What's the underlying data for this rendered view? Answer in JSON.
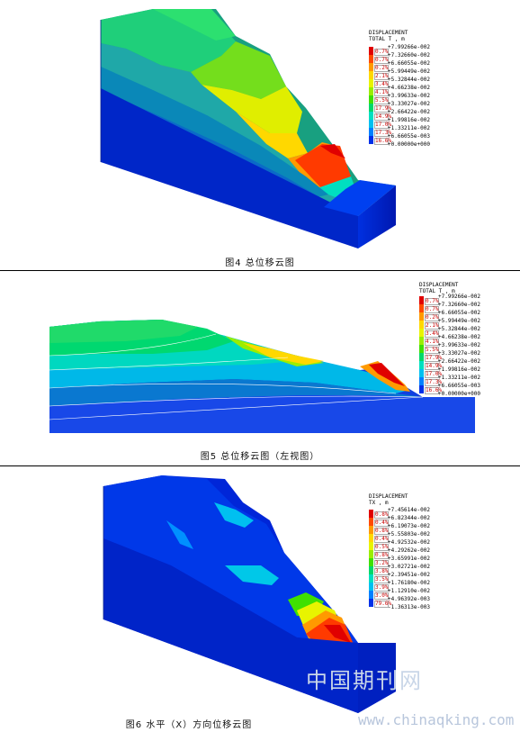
{
  "figures": [
    {
      "caption": "图4   总位移云图",
      "legend": {
        "title": "DISPLACEMENT",
        "subtitle": "TOTAL T , m",
        "values": [
          "+7.99266e-002",
          "+7.32660e-002",
          "+6.66055e-002",
          "+5.99449e-002",
          "+5.32844e-002",
          "+4.66238e-002",
          "+3.99633e-002",
          "+3.33027e-002",
          "+2.66422e-002",
          "+1.99816e-002",
          "+1.33211e-002",
          "+6.66055e-003",
          "+0.00000e+000"
        ],
        "percents": [
          "0.7%",
          "0.7%",
          "0.2%",
          "2.1%",
          "3.4%",
          "4.1%",
          "5.5%",
          "17.9%",
          "14.9%",
          "17.0%",
          "17.3%",
          "16.6%"
        ]
      }
    },
    {
      "caption": "图5   总位移云图（左视图）",
      "legend": {
        "title": "DISPLACEMENT",
        "subtitle": "TOTAL T , m",
        "values": [
          "+7.99266e-002",
          "+7.32660e-002",
          "+6.66055e-002",
          "+5.99449e-002",
          "+5.32844e-002",
          "+4.66238e-002",
          "+3.99633e-002",
          "+3.33027e-002",
          "+2.66422e-002",
          "+1.99816e-002",
          "+1.33211e-002",
          "+6.66055e-003",
          "+0.00000e+000"
        ],
        "percents": [
          "0.7%",
          "0.7%",
          "0.2%",
          "2.1%",
          "3.4%",
          "4.1%",
          "5.5%",
          "17.9%",
          "14.9%",
          "17.0%",
          "17.3%",
          "16.6%"
        ]
      }
    },
    {
      "caption": "图6   水平（X）方向位移云图",
      "legend": {
        "title": "DISPLACEMENT",
        "subtitle": "TX , m",
        "values": [
          "+7.45614e-002",
          "+6.82344e-002",
          "+6.19073e-002",
          "+5.55803e-002",
          "+4.92532e-002",
          "+4.29262e-002",
          "+3.65991e-002",
          "+3.02721e-002",
          "+2.39451e-002",
          "+1.76180e-002",
          "+1.12910e-002",
          "+4.96392e-003",
          "-1.36313e-003"
        ],
        "percents": [
          "0.8%",
          "0.4%",
          "0.8%",
          "0.4%",
          "0.5%",
          "0.8%",
          "3.2%",
          "3.8%",
          "3.5%",
          "3.9%",
          "3.0%",
          "79.6%"
        ]
      }
    }
  ],
  "colors": [
    "#e00000",
    "#ff4a00",
    "#ff9a00",
    "#ffd800",
    "#e8f400",
    "#9aee00",
    "#3fe000",
    "#00d86a",
    "#00dfc0",
    "#00c0f0",
    "#0080ff",
    "#0030e8"
  ],
  "watermark_cn": "中国期刊网",
  "watermark_url": "www.chinaqking.com"
}
